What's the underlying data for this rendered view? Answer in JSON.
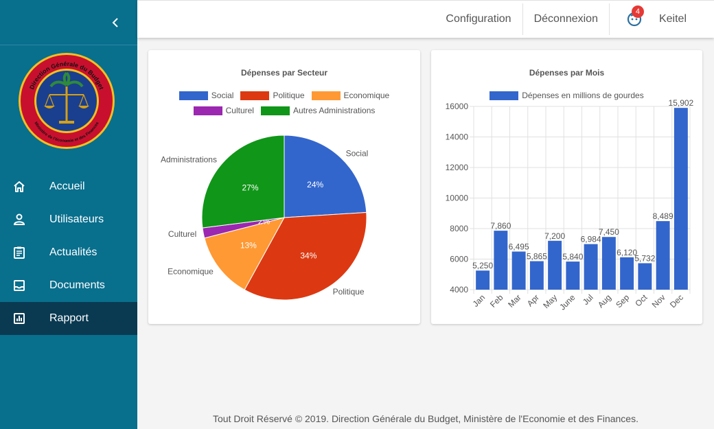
{
  "sidebar": {
    "logo": {
      "ring_text_top": "Direction Générale du Budget",
      "ring_text_bottom": "Ministère de l'économie et des Finances"
    },
    "items": [
      {
        "label": "Accueil",
        "icon": "home-icon"
      },
      {
        "label": "Utilisateurs",
        "icon": "user-icon"
      },
      {
        "label": "Actualités",
        "icon": "clipboard-icon"
      },
      {
        "label": "Documents",
        "icon": "inbox-icon"
      },
      {
        "label": "Rapport",
        "icon": "bar-chart-icon",
        "active": true
      }
    ]
  },
  "topbar": {
    "configuration": "Configuration",
    "logout": "Déconnexion",
    "notification_count": "4",
    "username": "Keitel"
  },
  "colors": {
    "sidebar": "#086f8d",
    "active": "#0a3a52",
    "social": "#3366cc",
    "politique": "#dc3912",
    "economique": "#ff9933",
    "culturel": "#9c27b0",
    "autres": "#109618",
    "bar": "#3366cc"
  },
  "chart_data": [
    {
      "type": "pie",
      "title": "Dépenses par Secteur",
      "legend": [
        "Social",
        "Politique",
        "Economique",
        "Culturel",
        "Autres Administrations"
      ],
      "slice_labels": [
        "Social",
        "Politique",
        "Economique",
        "Culturel",
        "Administrations"
      ],
      "values": [
        24,
        34,
        13,
        2,
        27
      ],
      "percent_labels": [
        "24%",
        "34%",
        "13%",
        "2%",
        "27%"
      ],
      "legend_placement": "top"
    },
    {
      "type": "bar",
      "title": "Dépenses par Mois",
      "series_name": "Dépenses en millions de gourdes",
      "categories": [
        "Jan",
        "Feb",
        "Mar",
        "Apr",
        "May",
        "June",
        "Jul",
        "Aug",
        "Sep",
        "Oct",
        "Nov",
        "Dec"
      ],
      "values": [
        5250,
        7860,
        6495,
        5865,
        7200,
        5840,
        6984,
        7450,
        6120,
        5732,
        8489,
        15902
      ],
      "value_labels": [
        "5,250",
        "7,860",
        "6,495",
        "5,865",
        "7,200",
        "5,840",
        "6,984",
        "7,450",
        "6,120",
        "5,732",
        "8,489",
        "15,902"
      ],
      "ylim": [
        4000,
        16000
      ],
      "yticks": [
        "16000",
        "14000",
        "12000",
        "10000",
        "8000",
        "6000",
        "4000"
      ],
      "grid": true,
      "legend_placement": "top"
    }
  ],
  "footer": "Tout Droit Réservé © 2019. Direction Générale du Budget, Ministère de l'Economie et des Finances."
}
